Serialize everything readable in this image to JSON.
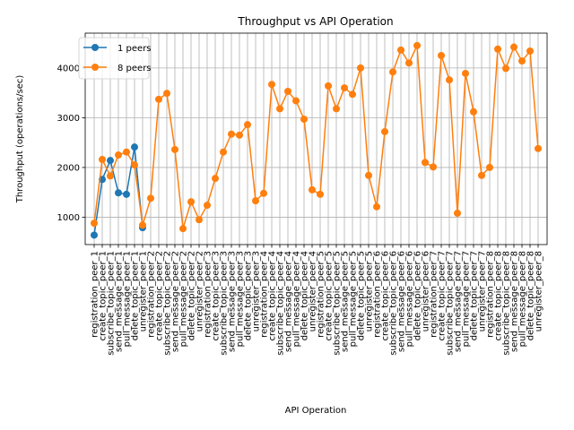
{
  "chart_data": {
    "type": "line",
    "title": "Throughput vs API Operation",
    "xlabel": "API Operation",
    "ylabel": "Throughput (operations/sec)",
    "ylim": [
      450,
      4700
    ],
    "yticks": [
      1000,
      2000,
      3000,
      4000
    ],
    "grid": true,
    "legend": "top-left",
    "categories": [
      "registration_peer_1",
      "create_topic_peer_1",
      "subscribe_topic_peer_1",
      "send_message_peer_1",
      "pull_message_peer_1",
      "delete_topic_peer_1",
      "unregister_peer_1",
      "registration_peer_2",
      "create_topic_peer_2",
      "subscribe_topic_peer_2",
      "send_message_peer_2",
      "pull_message_peer_2",
      "delete_topic_peer_2",
      "unregister_peer_2",
      "registration_peer_3",
      "create_topic_peer_3",
      "subscribe_topic_peer_3",
      "send_message_peer_3",
      "pull_message_peer_3",
      "delete_topic_peer_3",
      "unregister_peer_3",
      "registration_peer_4",
      "create_topic_peer_4",
      "subscribe_topic_peer_4",
      "send_message_peer_4",
      "pull_message_peer_4",
      "delete_topic_peer_4",
      "unregister_peer_4",
      "registration_peer_5",
      "create_topic_peer_5",
      "subscribe_topic_peer_5",
      "send_message_peer_5",
      "pull_message_peer_5",
      "delete_topic_peer_5",
      "unregister_peer_5",
      "registration_peer_6",
      "create_topic_peer_6",
      "subscribe_topic_peer_6",
      "send_message_peer_6",
      "pull_message_peer_6",
      "delete_topic_peer_6",
      "unregister_peer_6",
      "registration_peer_7",
      "create_topic_peer_7",
      "subscribe_topic_peer_7",
      "send_message_peer_7",
      "pull_message_peer_7",
      "delete_topic_peer_7",
      "unregister_peer_7",
      "registration_peer_8",
      "create_topic_peer_8",
      "subscribe_topic_peer_8",
      "send_message_peer_8",
      "pull_message_peer_8",
      "delete_topic_peer_8",
      "unregister_peer_8"
    ],
    "series": [
      {
        "name": "1 peers",
        "color": "#1f77b4",
        "x": [
          0,
          1,
          2,
          3,
          4,
          5,
          6
        ],
        "values": [
          640,
          1760,
          2140,
          1490,
          1460,
          2410,
          790
        ]
      },
      {
        "name": "8 peers",
        "color": "#ff7f0e",
        "x": [
          0,
          1,
          2,
          3,
          4,
          5,
          6,
          7,
          8,
          9,
          10,
          11,
          12,
          13,
          14,
          15,
          16,
          17,
          18,
          19,
          20,
          21,
          22,
          23,
          24,
          25,
          26,
          27,
          28,
          29,
          30,
          31,
          32,
          33,
          34,
          35,
          36,
          37,
          38,
          39,
          40,
          41,
          42,
          43,
          44,
          45,
          46,
          47,
          48,
          49,
          50,
          51,
          52,
          53,
          54,
          55
        ],
        "values": [
          880,
          2160,
          1830,
          2250,
          2310,
          2050,
          840,
          1380,
          3370,
          3490,
          2360,
          770,
          1310,
          950,
          1240,
          1780,
          2310,
          2670,
          2650,
          2860,
          1330,
          1480,
          3670,
          3180,
          3530,
          3340,
          2970,
          1550,
          1460,
          3640,
          3180,
          3600,
          3470,
          4000,
          1840,
          1210,
          2720,
          3920,
          4360,
          4100,
          4450,
          2100,
          2010,
          4250,
          3760,
          1080,
          3890,
          3120,
          1840,
          2000,
          4380,
          3990,
          4420,
          4140,
          4340,
          2380
        ]
      }
    ]
  }
}
